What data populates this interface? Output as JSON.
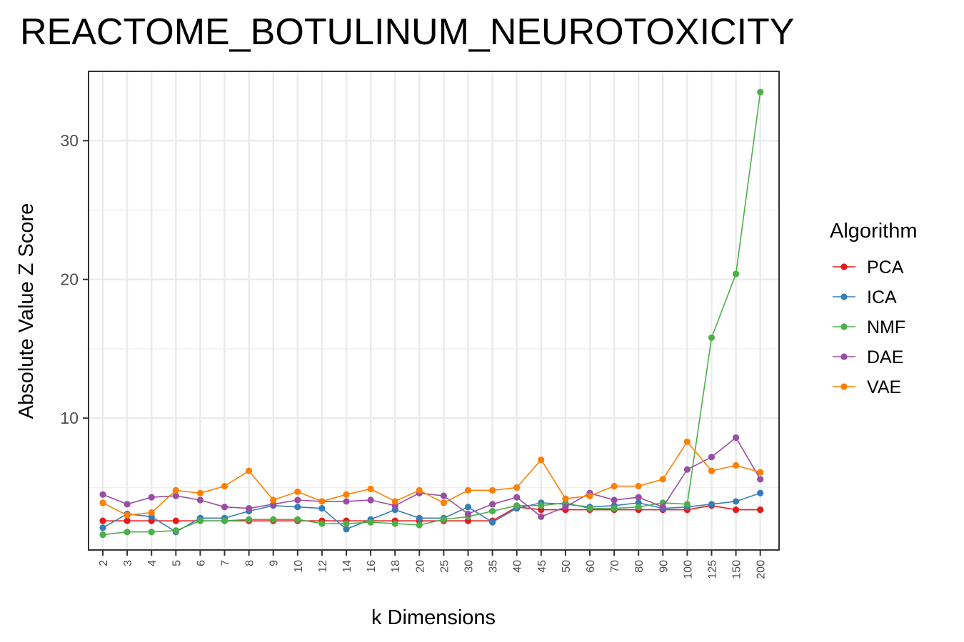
{
  "chart_data": {
    "type": "line",
    "title": "REACTOME_BOTULINUM_NEUROTOXICITY",
    "xlabel": "k Dimensions",
    "ylabel": "Absolute Value Z Score",
    "categories": [
      "2",
      "3",
      "4",
      "5",
      "6",
      "7",
      "8",
      "9",
      "10",
      "12",
      "14",
      "16",
      "18",
      "20",
      "25",
      "30",
      "35",
      "40",
      "45",
      "50",
      "60",
      "70",
      "80",
      "90",
      "100",
      "125",
      "150",
      "200"
    ],
    "ylim": [
      0.5,
      35
    ],
    "yticks": [
      10,
      20,
      30
    ],
    "grid": true,
    "legend": {
      "title": "Algorithm",
      "placement": "right"
    },
    "series": [
      {
        "name": "PCA",
        "color": "#e41a1c",
        "values": [
          2.6,
          2.6,
          2.6,
          2.6,
          2.6,
          2.6,
          2.6,
          2.6,
          2.6,
          2.6,
          2.6,
          2.6,
          2.6,
          2.6,
          2.6,
          2.6,
          2.6,
          3.6,
          3.4,
          3.4,
          3.4,
          3.4,
          3.4,
          3.4,
          3.4,
          3.7,
          3.4,
          3.4
        ]
      },
      {
        "name": "ICA",
        "color": "#377eb8",
        "values": [
          2.1,
          3.1,
          2.9,
          1.8,
          2.8,
          2.8,
          3.3,
          3.7,
          3.6,
          3.5,
          2.0,
          2.7,
          3.4,
          2.8,
          2.8,
          3.6,
          2.5,
          3.5,
          3.9,
          3.8,
          3.6,
          3.7,
          3.9,
          3.5,
          3.6,
          3.8,
          4.0,
          4.6
        ]
      },
      {
        "name": "NMF",
        "color": "#4daf4a",
        "values": [
          1.6,
          1.8,
          1.8,
          1.9,
          2.6,
          2.6,
          2.7,
          2.7,
          2.7,
          2.4,
          2.4,
          2.5,
          2.4,
          2.3,
          2.7,
          2.9,
          3.3,
          3.7,
          3.7,
          3.9,
          3.5,
          3.5,
          3.6,
          3.9,
          3.8,
          15.8,
          20.4,
          33.5
        ]
      },
      {
        "name": "DAE",
        "color": "#984ea3",
        "values": [
          4.5,
          3.8,
          4.3,
          4.4,
          4.1,
          3.6,
          3.5,
          3.8,
          4.1,
          4.0,
          4.0,
          4.1,
          3.7,
          4.6,
          4.4,
          3.1,
          3.8,
          4.3,
          2.9,
          3.6,
          4.6,
          4.1,
          4.3,
          3.6,
          6.3,
          7.2,
          8.6,
          5.6
        ]
      },
      {
        "name": "VAE",
        "color": "#ff7f00",
        "values": [
          3.9,
          3.0,
          3.2,
          4.8,
          4.6,
          5.1,
          6.2,
          4.1,
          4.7,
          4.0,
          4.5,
          4.9,
          4.0,
          4.8,
          3.9,
          4.8,
          4.8,
          5.0,
          7.0,
          4.2,
          4.4,
          5.1,
          5.1,
          5.6,
          8.3,
          6.2,
          6.6,
          6.1
        ]
      }
    ]
  }
}
